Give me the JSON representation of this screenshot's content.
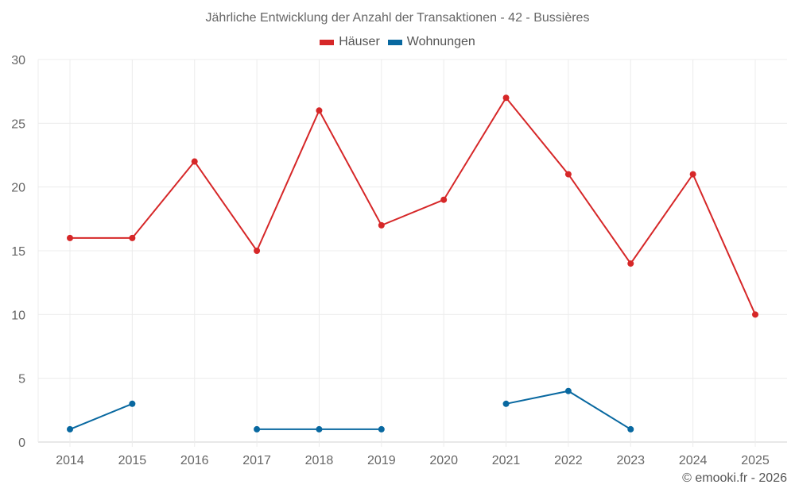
{
  "chart_data": {
    "type": "line",
    "title": "Jährliche Entwicklung der Anzahl der Transaktionen - 42 - Bussières",
    "xlabel": "",
    "ylabel": "",
    "categories": [
      "2014",
      "2015",
      "2016",
      "2017",
      "2018",
      "2019",
      "2020",
      "2021",
      "2022",
      "2023",
      "2024",
      "2025"
    ],
    "ylim": [
      0,
      30
    ],
    "yticks": [
      0,
      5,
      10,
      15,
      20,
      25,
      30
    ],
    "grid": true,
    "legend_position": "top",
    "series": [
      {
        "name": "Häuser",
        "color": "#d62728",
        "values": [
          16,
          16,
          22,
          15,
          26,
          17,
          19,
          27,
          21,
          14,
          21,
          10
        ]
      },
      {
        "name": "Wohnungen",
        "color": "#0868a0",
        "values": [
          1,
          3,
          null,
          1,
          1,
          1,
          null,
          3,
          4,
          1,
          null,
          null
        ]
      }
    ]
  },
  "credit": "© emooki.fr - 2026"
}
